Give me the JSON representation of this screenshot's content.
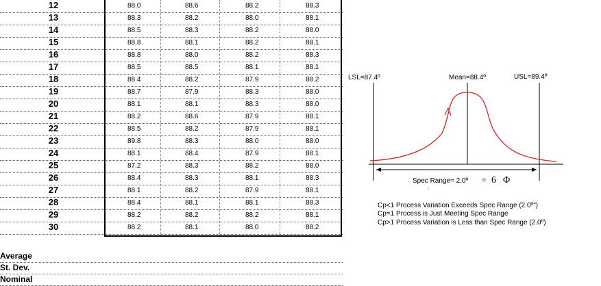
{
  "table": {
    "rows": [
      {
        "n": "12",
        "v": [
          "88.0",
          "88.6",
          "88.2",
          "88.3"
        ]
      },
      {
        "n": "13",
        "v": [
          "88.3",
          "88.2",
          "88.0",
          "88.1"
        ]
      },
      {
        "n": "14",
        "v": [
          "88.5",
          "88.3",
          "88.2",
          "88.0"
        ]
      },
      {
        "n": "15",
        "v": [
          "88.8",
          "88.1",
          "88.2",
          "88.1"
        ]
      },
      {
        "n": "16",
        "v": [
          "88.8",
          "88.0",
          "88.2",
          "88.3"
        ]
      },
      {
        "n": "17",
        "v": [
          "88.5",
          "88.5",
          "88.1",
          "88.1"
        ]
      },
      {
        "n": "18",
        "v": [
          "88.4",
          "88.2",
          "87.9",
          "88.2"
        ]
      },
      {
        "n": "19",
        "v": [
          "88.7",
          "87.9",
          "88.3",
          "88.0"
        ]
      },
      {
        "n": "20",
        "v": [
          "88.1",
          "88.1",
          "88.3",
          "88.0"
        ]
      },
      {
        "n": "21",
        "v": [
          "88.2",
          "88.6",
          "87.9",
          "88.1"
        ]
      },
      {
        "n": "22",
        "v": [
          "88.5",
          "88.2",
          "87.9",
          "88.1"
        ]
      },
      {
        "n": "23",
        "v": [
          "89.8",
          "88.3",
          "88.0",
          "88.0"
        ]
      },
      {
        "n": "24",
        "v": [
          "88.1",
          "88.4",
          "87.9",
          "88.1"
        ]
      },
      {
        "n": "25",
        "v": [
          "87.2",
          "88.3",
          "88.2",
          "88.0"
        ]
      },
      {
        "n": "26",
        "v": [
          "88.4",
          "88.3",
          "88.1",
          "88.3"
        ]
      },
      {
        "n": "27",
        "v": [
          "88.1",
          "88.2",
          "87.9",
          "88.1"
        ]
      },
      {
        "n": "28",
        "v": [
          "88.4",
          "88.1",
          "88.1",
          "88.3"
        ]
      },
      {
        "n": "29",
        "v": [
          "88.2",
          "88.2",
          "88.2",
          "88.1"
        ]
      },
      {
        "n": "30",
        "v": [
          "88.2",
          "88.1",
          "88.0",
          "88.2"
        ]
      }
    ],
    "stats": [
      "Average",
      "St. Dev.",
      "Nominal"
    ]
  },
  "diagram": {
    "lsl": "LSL=87.4º",
    "mean": "Mean=88.4º",
    "usl": "USL=89.4º",
    "spec_range": "Spec Range= 2.0º",
    "equals": "=",
    "six": "6",
    "phi": "Φ",
    "curve_color": "#e02020"
  },
  "notes": [
    "Cp<1  Process Variation Exceeds Spec Range (2.0º\")",
    "Cp=1  Process is Just Meeting Spec Range",
    "Cp>1  Process Variation is Less than Spec Range (2.0º)"
  ]
}
